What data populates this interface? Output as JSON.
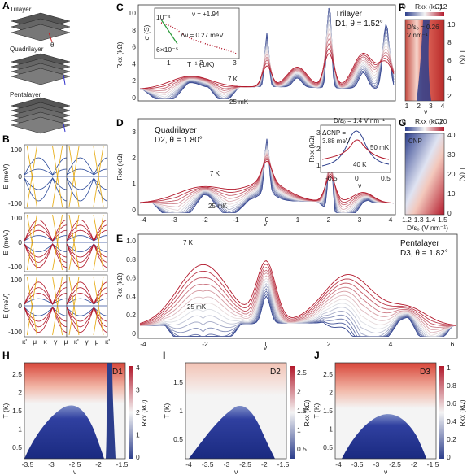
{
  "panels": {
    "A": {
      "label": "A",
      "stacks": [
        "Trilayer",
        "Quadrilayer",
        "Pentalayer"
      ],
      "theta": "θ"
    },
    "B": {
      "label": "B",
      "ylabel": "E (meV)",
      "yticks": [
        "100",
        "0",
        "-100"
      ],
      "xticks": [
        "κ'",
        "μ",
        "κ",
        "γ",
        "μ",
        "κ'",
        "γ",
        "μ",
        "κ'"
      ]
    },
    "C": {
      "label": "C",
      "title1": "Trilayer",
      "title2": "D1, θ = 1.52°",
      "ylabel": "Rxx (kΩ)",
      "yticks": [
        "0",
        "2",
        "4",
        "6",
        "8",
        "10"
      ],
      "hi_T": "7 K",
      "lo_T": "25 mK",
      "inset": {
        "nu": "ν = +1.94",
        "delta": "Δν = 0.27 meV",
        "ylabel": "σ (S)",
        "yticks": [
          "10⁻⁴",
          "6×10⁻⁵"
        ],
        "xlabel": "T⁻¹ (1/K)",
        "xticks": [
          "1",
          "2",
          "3"
        ]
      }
    },
    "D": {
      "label": "D",
      "title1": "Quadrilayer",
      "title2": "D2, θ = 1.80°",
      "ylabel": "Rxx (kΩ)",
      "yticks": [
        "0",
        "1",
        "2",
        "3"
      ],
      "hi_T": "7 K",
      "lo_T": "25 mK",
      "inset": {
        "field": "D/ε₀ = 1.4 V nm⁻¹",
        "delta": "ΔCNP =",
        "delta_val": "3.88 meV",
        "t_hi": "50 mK",
        "t_lo": "40 K",
        "ylabel": "Rxx (kΩ)",
        "xlabel": "ν",
        "xticks": [
          "-0.5",
          "0",
          "0.5"
        ],
        "yticks": [
          "1",
          "2",
          "3"
        ]
      }
    },
    "E": {
      "label": "E",
      "title1": "Pentalayer",
      "title2": "D3, θ = 1.82°",
      "ylabel": "Rxx (kΩ)",
      "yticks": [
        "0",
        "0.2",
        "0.4",
        "0.6",
        "0.8",
        "1.0"
      ],
      "hi_T": "7 K",
      "lo_T": "25 mK"
    },
    "F": {
      "label": "F",
      "cbar_title": "Rxx (kΩ)",
      "cbar_ticks": [
        "0",
        "12"
      ],
      "inset_label": "D/ε₀ = 0.26",
      "inset_unit": "V nm⁻¹",
      "ylabel": "T (K)",
      "yticks": [
        "10",
        "8",
        "6",
        "4",
        "2"
      ],
      "xlabel": "ν",
      "xticks": [
        "1",
        "2",
        "3",
        "4"
      ]
    },
    "G": {
      "label": "G",
      "cbar_title": "Rxx (kΩ)",
      "cbar_ticks": [
        "0",
        "20"
      ],
      "tag": "CNP",
      "ylabel": "T (K)",
      "yticks": [
        "40",
        "30",
        "20",
        "10",
        "0"
      ],
      "xlabel": "D/ε₀ (V nm⁻¹)",
      "xticks": [
        "1.2",
        "1.3",
        "1.4",
        "1.5"
      ]
    },
    "H": {
      "label": "H",
      "device": "D1",
      "ylabel": "T (K)",
      "yticks": [
        "2.5",
        "2",
        "1.5",
        "1",
        "0.5"
      ],
      "xlabel": "ν",
      "xticks": [
        "-3.5",
        "-3",
        "-2.5",
        "-2",
        "-1.5"
      ],
      "cbar_title": "Rxx (kΩ)",
      "cbar_ticks": [
        "4",
        "3",
        "2",
        "1",
        "0"
      ]
    },
    "I": {
      "label": "I",
      "device": "D2",
      "ylabel": "T (K)",
      "yticks": [
        "1.5",
        "1",
        "0.5"
      ],
      "xlabel": "ν",
      "xticks": [
        "-4",
        "-3.5",
        "-3",
        "-2.5",
        "-2",
        "-1.5"
      ],
      "cbar_title": "Rxx (kΩ)",
      "cbar_ticks": [
        "2.5",
        "2",
        "1.5",
        "1",
        "0.5"
      ]
    },
    "J": {
      "label": "J",
      "device": "D3",
      "ylabel": "T (K)",
      "yticks": [
        "2.5",
        "2",
        "1.5",
        "1",
        "0.5"
      ],
      "xlabel": "ν",
      "xticks": [
        "-4",
        "-3.5",
        "-3",
        "-2.5",
        "-2",
        "-1.5"
      ],
      "cbar_title": "Rxx (kΩ)",
      "cbar_ticks": [
        "1",
        "0.8",
        "0.6",
        "0.4",
        "0.2",
        "0"
      ]
    }
  },
  "nu_ticks": [
    "-4",
    "-3",
    "-2",
    "-1",
    "0",
    "1",
    "2",
    "3",
    "4"
  ],
  "nu_ticks_E": [
    "-4",
    "-2",
    "0",
    "2",
    "4",
    "6"
  ],
  "nu_label": "ν",
  "colors": {
    "hot": "#b2182b",
    "cold": "#2c3e8c",
    "mid": "#f2f2f2",
    "gold": "#e8b020",
    "band": "#2b4a9a"
  }
}
